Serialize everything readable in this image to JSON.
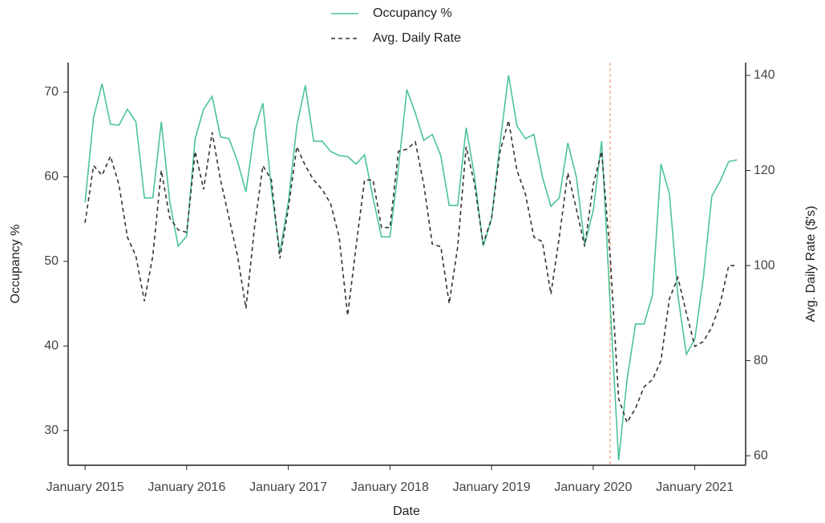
{
  "chart_data": {
    "type": "line",
    "x_label": "Date",
    "y_label": "Occupancy %",
    "y2_label": "Avg. Daily Rate ($'s)",
    "x": [
      "2015-01",
      "2015-02",
      "2015-03",
      "2015-04",
      "2015-05",
      "2015-06",
      "2015-07",
      "2015-08",
      "2015-09",
      "2015-10",
      "2015-11",
      "2015-12",
      "2016-01",
      "2016-02",
      "2016-03",
      "2016-04",
      "2016-05",
      "2016-06",
      "2016-07",
      "2016-08",
      "2016-09",
      "2016-10",
      "2016-11",
      "2016-12",
      "2017-01",
      "2017-02",
      "2017-03",
      "2017-04",
      "2017-05",
      "2017-06",
      "2017-07",
      "2017-08",
      "2017-09",
      "2017-10",
      "2017-11",
      "2017-12",
      "2018-01",
      "2018-02",
      "2018-03",
      "2018-04",
      "2018-05",
      "2018-06",
      "2018-07",
      "2018-08",
      "2018-09",
      "2018-10",
      "2018-11",
      "2018-12",
      "2019-01",
      "2019-02",
      "2019-03",
      "2019-04",
      "2019-05",
      "2019-06",
      "2019-07",
      "2019-08",
      "2019-09",
      "2019-10",
      "2019-11",
      "2019-12",
      "2020-01",
      "2020-02",
      "2020-03",
      "2020-04",
      "2020-05",
      "2020-06",
      "2020-07",
      "2020-08",
      "2020-09",
      "2020-10",
      "2020-11",
      "2020-12",
      "2021-01",
      "2021-02",
      "2021-03",
      "2021-04",
      "2021-05",
      "2021-06"
    ],
    "series": [
      {
        "name": "Occupancy %",
        "color": "#4cc39a",
        "dash": "none",
        "axis": "y",
        "values": [
          57,
          67,
          71,
          66.2,
          66.1,
          68,
          66.5,
          57.5,
          57.5,
          66.5,
          57,
          51.8,
          53,
          64.5,
          68,
          69.5,
          64.7,
          64.5,
          61.8,
          58.2,
          65.5,
          68.7,
          58.5,
          51,
          57,
          66,
          70.8,
          64.2,
          64.2,
          63,
          62.5,
          62.4,
          61.5,
          62.6,
          57.5,
          52.9,
          52.9,
          61,
          70.3,
          67.5,
          64.3,
          65,
          62.5,
          56.6,
          56.6,
          65.8,
          60,
          51.8,
          55,
          64,
          72,
          66,
          64.5,
          65,
          60,
          56.5,
          57.5,
          64,
          60,
          52,
          56,
          64.2,
          45,
          26.5,
          36,
          42.6,
          42.6,
          46,
          61.5,
          58,
          46,
          39,
          40.8,
          48,
          57.7,
          59.5,
          61.8,
          62
        ]
      },
      {
        "name": "Avg. Daily Rate",
        "color": "#333333",
        "dash": "5,4",
        "axis": "y2",
        "values": [
          109,
          121,
          119,
          123,
          117,
          106,
          102,
          92.5,
          102,
          120,
          110,
          107.5,
          107,
          124,
          116,
          128,
          118,
          110,
          102,
          91,
          108,
          121,
          118,
          101.5,
          112,
          125,
          121,
          118,
          116,
          113,
          106,
          89.5,
          104,
          118,
          118,
          108,
          108,
          124,
          124.5,
          126,
          117,
          104.5,
          104,
          92,
          104,
          125,
          117,
          104.5,
          110,
          124,
          130.5,
          120,
          115,
          106,
          105,
          94,
          106,
          119.5,
          112,
          104,
          117,
          124,
          102,
          72,
          67,
          70,
          74.5,
          76,
          80,
          93,
          97.5,
          90,
          83,
          84,
          87,
          92,
          100,
          100
        ]
      }
    ],
    "xlim": [
      "2014-11",
      "2021-07"
    ],
    "xticks": [
      {
        "value": "2015-01",
        "label": "January 2015"
      },
      {
        "value": "2016-01",
        "label": "January 2016"
      },
      {
        "value": "2017-01",
        "label": "January 2017"
      },
      {
        "value": "2018-01",
        "label": "January 2018"
      },
      {
        "value": "2019-01",
        "label": "January 2019"
      },
      {
        "value": "2020-01",
        "label": "January 2020"
      },
      {
        "value": "2021-01",
        "label": "January 2021"
      }
    ],
    "ylim": [
      25.9,
      73.5
    ],
    "yticks": [
      30,
      40,
      50,
      60,
      70
    ],
    "y2lim": [
      58,
      142.7
    ],
    "y2ticks": [
      60,
      80,
      100,
      120,
      140
    ],
    "vline": {
      "x": "2020-03",
      "color": "#f0a070"
    },
    "legend": "top"
  }
}
